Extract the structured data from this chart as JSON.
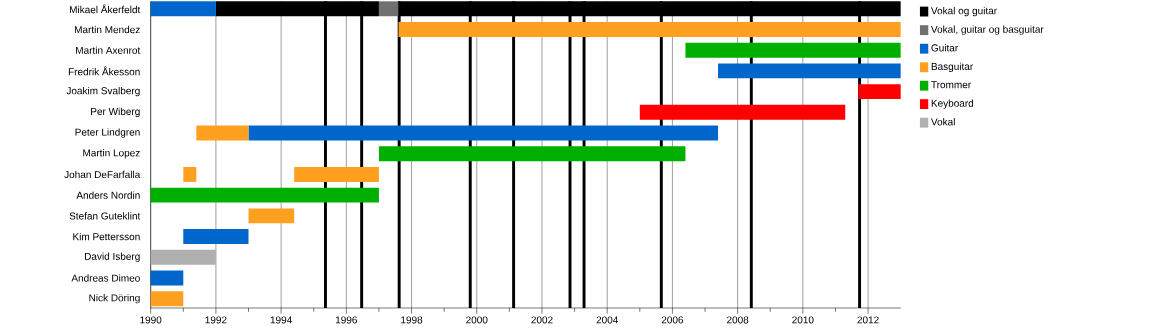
{
  "chart_data": {
    "type": "bar",
    "orientation": "horizontal",
    "categories": [
      "Mikael Åkerfeldt",
      "Martin Mendez",
      "Martin Axenrot",
      "Fredrik Åkesson",
      "Joakim Svalberg",
      "Per Wiberg",
      "Peter Lindgren",
      "Martin Lopez",
      "Johan DeFarfalla",
      "Anders Nordin",
      "Stefan Guteklint",
      "Kim Pettersson",
      "David Isberg",
      "Andreas Dimeo",
      "Nick Döring"
    ],
    "series": [
      {
        "name": "Vokal og guitar",
        "color": "#000000",
        "base": [
          1992,
          null,
          null,
          null,
          null,
          null,
          null,
          null,
          null,
          null,
          null,
          null,
          null,
          null,
          null
        ],
        "values": [
          5.0,
          null,
          null,
          null,
          null,
          null,
          null,
          null,
          null,
          null,
          null,
          null,
          null,
          null,
          null
        ]
      },
      {
        "name": "Vokal, guitar og basguitar",
        "color": "#707070",
        "base": [
          1997.0,
          null,
          null,
          null,
          null,
          null,
          null,
          null,
          null,
          null,
          null,
          null,
          null,
          null,
          null
        ],
        "values": [
          0.6,
          null,
          null,
          null,
          null,
          null,
          null,
          null,
          null,
          null,
          null,
          null,
          null,
          null,
          null
        ]
      },
      {
        "name": "Guitar",
        "color": "#0066cc",
        "base": [
          1990,
          null,
          null,
          2007.4,
          null,
          null,
          1993.0,
          null,
          null,
          null,
          null,
          1991.0,
          null,
          1990,
          null
        ],
        "values": [
          2.0,
          null,
          null,
          5.6,
          null,
          null,
          14.4,
          null,
          null,
          null,
          null,
          2.0,
          null,
          1.0,
          null
        ]
      },
      {
        "name": "Basguitar",
        "color": "#ffa020",
        "base": [
          null,
          1997.6,
          null,
          null,
          null,
          null,
          1991.4,
          null,
          1991.0,
          null,
          1993.0,
          null,
          null,
          null,
          1990
        ],
        "values": [
          null,
          15.4,
          null,
          null,
          null,
          null,
          1.6,
          null,
          0.4,
          null,
          1.4,
          null,
          null,
          null,
          1.0
        ]
      },
      {
        "name": "Trommer",
        "color": "#00b000",
        "base": [
          null,
          null,
          2006.4,
          null,
          null,
          null,
          null,
          1997.0,
          null,
          1990,
          null,
          null,
          null,
          null,
          null
        ],
        "values": [
          null,
          null,
          6.6,
          null,
          null,
          null,
          null,
          9.4,
          null,
          7.0,
          null,
          null,
          null,
          null,
          null
        ]
      },
      {
        "name": "Keyboard",
        "color": "#ff0000",
        "base": [
          null,
          null,
          null,
          null,
          2011.7,
          2005.0,
          null,
          null,
          null,
          null,
          null,
          null,
          null,
          null,
          null
        ],
        "values": [
          null,
          null,
          null,
          null,
          1.3,
          6.3,
          null,
          null,
          null,
          null,
          null,
          null,
          null,
          null,
          null
        ]
      },
      {
        "name": "Vokal",
        "color": "#b0b0b0",
        "base": [
          null,
          null,
          null,
          null,
          null,
          null,
          null,
          null,
          null,
          null,
          null,
          null,
          1990,
          null,
          null
        ],
        "values": [
          null,
          null,
          null,
          null,
          null,
          null,
          null,
          null,
          null,
          null,
          null,
          null,
          2.0,
          null,
          null
        ]
      },
      {
        "color": "#000000",
        "base": [
          1997.6,
          null,
          null,
          null,
          null,
          null,
          null,
          null,
          null,
          null,
          null,
          null,
          null,
          null,
          null
        ],
        "values": [
          15.4,
          null,
          null,
          null,
          null,
          null,
          null,
          null,
          null,
          null,
          null,
          null,
          null,
          null,
          null
        ]
      },
      {
        "color": "#ffa020",
        "base": [
          null,
          null,
          null,
          null,
          null,
          null,
          null,
          null,
          1994.4,
          null,
          null,
          null,
          null,
          null,
          null
        ],
        "values": [
          null,
          null,
          null,
          null,
          null,
          null,
          null,
          null,
          2.6,
          null,
          null,
          null,
          null,
          null,
          null
        ]
      }
    ],
    "xlim": [
      1990,
      2013
    ],
    "xticks": [
      1990,
      1992,
      1994,
      1996,
      1998,
      2000,
      2002,
      2004,
      2006,
      2008,
      2010,
      2012
    ],
    "grid": "x",
    "legend": "right",
    "ref_lines": [
      {
        "axis": "x",
        "value": 1995.36,
        "color": "#000000"
      },
      {
        "axis": "x",
        "value": 1996.47,
        "color": "#000000"
      },
      {
        "axis": "x",
        "value": 1997.62,
        "color": "#000000"
      },
      {
        "axis": "x",
        "value": 1999.8,
        "color": "#000000"
      },
      {
        "axis": "x",
        "value": 2001.13,
        "color": "#000000"
      },
      {
        "axis": "x",
        "value": 2002.86,
        "color": "#000000"
      },
      {
        "axis": "x",
        "value": 2003.29,
        "color": "#000000"
      },
      {
        "axis": "x",
        "value": 2005.66,
        "color": "#000000"
      },
      {
        "axis": "x",
        "value": 2008.42,
        "color": "#000000"
      },
      {
        "axis": "x",
        "value": 2011.74,
        "color": "#000000"
      }
    ]
  }
}
